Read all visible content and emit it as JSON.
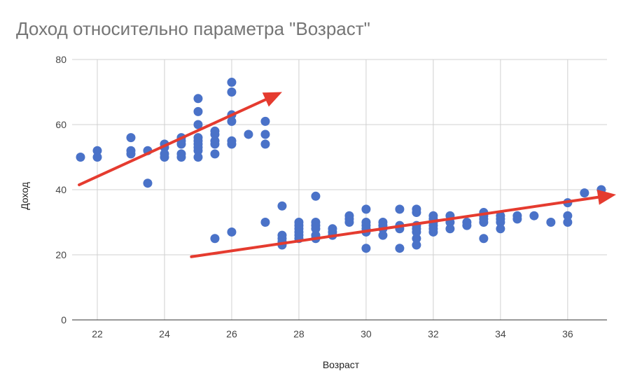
{
  "chart_data": {
    "type": "scatter",
    "title": "Доход относительно параметра \"Возраст\"",
    "xlabel": "Возраст",
    "ylabel": "Доход",
    "xlim": [
      21.25,
      37.17
    ],
    "ylim": [
      0,
      80
    ],
    "xticks": [
      22,
      24,
      26,
      28,
      30,
      32,
      34,
      36
    ],
    "yticks": [
      0,
      20,
      40,
      60,
      80
    ],
    "grid": true,
    "point_color": "#4a72c8",
    "arrow_color": "#e53b2f",
    "points": [
      [
        21.5,
        50
      ],
      [
        22,
        50
      ],
      [
        22,
        52
      ],
      [
        23,
        51
      ],
      [
        23,
        52
      ],
      [
        23,
        56
      ],
      [
        23.5,
        52
      ],
      [
        23.5,
        42
      ],
      [
        24,
        50
      ],
      [
        24,
        51
      ],
      [
        24,
        53
      ],
      [
        24,
        54
      ],
      [
        24.5,
        50
      ],
      [
        24.5,
        51
      ],
      [
        24.5,
        54
      ],
      [
        24.5,
        55
      ],
      [
        24.5,
        56
      ],
      [
        25,
        50
      ],
      [
        25,
        52
      ],
      [
        25,
        53
      ],
      [
        25,
        54
      ],
      [
        25,
        55
      ],
      [
        25,
        56
      ],
      [
        25,
        60
      ],
      [
        25,
        64
      ],
      [
        25,
        68
      ],
      [
        25.5,
        51
      ],
      [
        25.5,
        54
      ],
      [
        25.5,
        55
      ],
      [
        25.5,
        57
      ],
      [
        25.5,
        58
      ],
      [
        26,
        54
      ],
      [
        26,
        55
      ],
      [
        26,
        61
      ],
      [
        26,
        63
      ],
      [
        26,
        70
      ],
      [
        26,
        73
      ],
      [
        26.5,
        57
      ],
      [
        27,
        54
      ],
      [
        27,
        57
      ],
      [
        27,
        61
      ],
      [
        25.5,
        25
      ],
      [
        26,
        27
      ],
      [
        27,
        30
      ],
      [
        27.5,
        23
      ],
      [
        27.5,
        24
      ],
      [
        27.5,
        25
      ],
      [
        27.5,
        26
      ],
      [
        27.5,
        35
      ],
      [
        28,
        25
      ],
      [
        28,
        26
      ],
      [
        28,
        27
      ],
      [
        28,
        28
      ],
      [
        28,
        29
      ],
      [
        28,
        30
      ],
      [
        28.5,
        25
      ],
      [
        28.5,
        26
      ],
      [
        28.5,
        28
      ],
      [
        28.5,
        29
      ],
      [
        28.5,
        30
      ],
      [
        28.5,
        38
      ],
      [
        29,
        26
      ],
      [
        29,
        27
      ],
      [
        29,
        28
      ],
      [
        29.5,
        30
      ],
      [
        29.5,
        31
      ],
      [
        29.5,
        32
      ],
      [
        30,
        22
      ],
      [
        30,
        27
      ],
      [
        30,
        28
      ],
      [
        30,
        29
      ],
      [
        30,
        30
      ],
      [
        30,
        34
      ],
      [
        30.5,
        26
      ],
      [
        30.5,
        28
      ],
      [
        30.5,
        29
      ],
      [
        30.5,
        30
      ],
      [
        31,
        22
      ],
      [
        31,
        28
      ],
      [
        31,
        29
      ],
      [
        31,
        34
      ],
      [
        31.5,
        23
      ],
      [
        31.5,
        25
      ],
      [
        31.5,
        27
      ],
      [
        31.5,
        28
      ],
      [
        31.5,
        29
      ],
      [
        31.5,
        33
      ],
      [
        31.5,
        34
      ],
      [
        32,
        27
      ],
      [
        32,
        28
      ],
      [
        32,
        29
      ],
      [
        32,
        30
      ],
      [
        32,
        31
      ],
      [
        32,
        32
      ],
      [
        32.5,
        28
      ],
      [
        32.5,
        30
      ],
      [
        32.5,
        32
      ],
      [
        33,
        29
      ],
      [
        33,
        30
      ],
      [
        33.5,
        25
      ],
      [
        33.5,
        30
      ],
      [
        33.5,
        31
      ],
      [
        33.5,
        32
      ],
      [
        33.5,
        33
      ],
      [
        34,
        28
      ],
      [
        34,
        30
      ],
      [
        34,
        31
      ],
      [
        34,
        32
      ],
      [
        34.5,
        31
      ],
      [
        34.5,
        32
      ],
      [
        35,
        32
      ],
      [
        35.5,
        30
      ],
      [
        36,
        30
      ],
      [
        36,
        32
      ],
      [
        36,
        36
      ],
      [
        36.5,
        39
      ],
      [
        37,
        40
      ]
    ],
    "annotations": [
      {
        "type": "arrow",
        "from": [
          21.46,
          41.5
        ],
        "to": [
          27.5,
          70
        ]
      },
      {
        "type": "arrow",
        "from": [
          24.8,
          19.4
        ],
        "to": [
          37.44,
          38.5
        ]
      }
    ]
  }
}
